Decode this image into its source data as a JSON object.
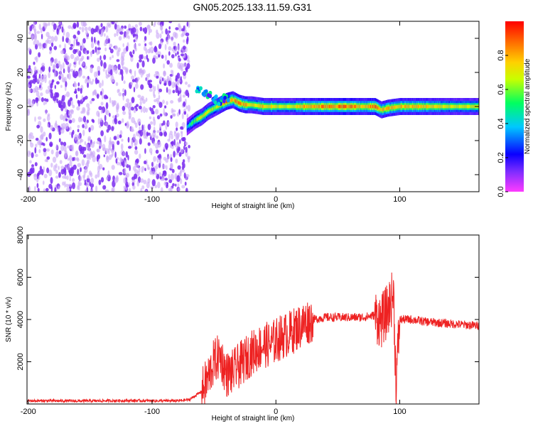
{
  "figure_title": "GN05.2025.133.11.59.G31",
  "chart_data": [
    {
      "type": "heatmap",
      "title": "",
      "xlabel": "Height of straight line (km)",
      "ylabel": "Frequency (Hz)",
      "xlim": [
        -201,
        164
      ],
      "ylim": [
        -50,
        50
      ],
      "xticks": [
        -200,
        -100,
        0,
        100
      ],
      "yticks": [
        40,
        20,
        0,
        -20,
        -40
      ],
      "grid": false,
      "colorbar": {
        "label": "Normalized spectral amplitude",
        "range": [
          0.0,
          1.0
        ],
        "ticks": [
          0.0,
          0.2,
          0.4,
          0.6,
          0.8
        ],
        "colors": [
          "#ff3cff",
          "#7b2cff",
          "#0a00ff",
          "#00c8ff",
          "#00ff60",
          "#c8ff00",
          "#ffd000",
          "#ff6a00",
          "#ff0000"
        ]
      },
      "noise_region": {
        "x_range": [
          -200,
          -70
        ],
        "typical_amplitude": 0.1
      },
      "signal_track": {
        "x": [
          -72,
          -65,
          -60,
          -55,
          -50,
          -45,
          -40,
          -35,
          -30,
          -25,
          -20,
          -10,
          0,
          10,
          20,
          40,
          60,
          70,
          80,
          85,
          90,
          100,
          120,
          140,
          164
        ],
        "frequency": [
          -12,
          -8,
          -6,
          -3,
          -1,
          1,
          3,
          4,
          2,
          1,
          1,
          0,
          0,
          0,
          0,
          0,
          0,
          0,
          0,
          -2,
          -1,
          0,
          0,
          0,
          0
        ],
        "amplitude": [
          0.4,
          0.6,
          0.7,
          0.7,
          0.6,
          0.8,
          0.9,
          0.8,
          0.9,
          0.8,
          0.7,
          0.8,
          0.7,
          0.7,
          0.8,
          0.9,
          0.9,
          0.8,
          0.9,
          0.8,
          0.8,
          0.8,
          0.8,
          0.7,
          0.7
        ]
      },
      "upper_branch": {
        "x": [
          -62,
          -58,
          -55,
          -50,
          -45,
          -40
        ],
        "frequency": [
          10,
          8,
          6,
          4,
          3,
          5
        ]
      }
    },
    {
      "type": "line",
      "title": "",
      "xlabel": "Height of straight line (km)",
      "ylabel": "SNR (10 * v/v)",
      "xlim": [
        -201,
        164
      ],
      "ylim": [
        0,
        8000
      ],
      "xticks": [
        -200,
        -100,
        0,
        100
      ],
      "yticks": [
        2000,
        4000,
        6000,
        8000
      ],
      "grid": false,
      "series": [
        {
          "color": "#ee2222",
          "x": [
            -200,
            -180,
            -160,
            -140,
            -120,
            -100,
            -80,
            -70,
            -60,
            -55,
            -50,
            -45,
            -40,
            -35,
            -30,
            -25,
            -20,
            -15,
            -10,
            -5,
            0,
            5,
            10,
            15,
            20,
            25,
            30,
            40,
            50,
            60,
            70,
            80,
            85,
            90,
            95,
            97,
            100,
            110,
            120,
            140,
            164
          ],
          "values": [
            150,
            150,
            140,
            150,
            160,
            150,
            150,
            200,
            600,
            1200,
            2000,
            2300,
            1400,
            1500,
            1800,
            2100,
            2400,
            2600,
            2800,
            2800,
            3000,
            3200,
            3300,
            3500,
            3700,
            3900,
            4000,
            4100,
            4100,
            4100,
            4100,
            4200,
            3900,
            4400,
            5200,
            1000,
            4000,
            4000,
            3900,
            3800,
            3700
          ]
        }
      ]
    }
  ]
}
